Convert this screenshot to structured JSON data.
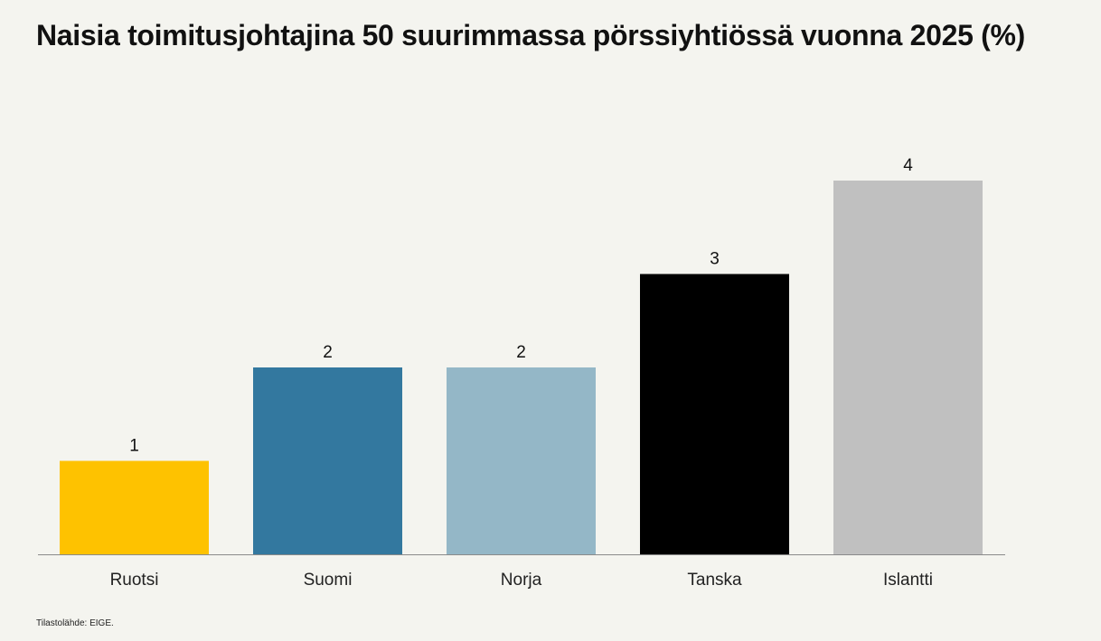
{
  "chart_data": {
    "type": "bar",
    "title": "Naisia toimitusjohtajina 50 suurimmassa pörssiyhtiössä vuonna 2025 (%)",
    "categories": [
      "Ruotsi",
      "Suomi",
      "Norja",
      "Tanska",
      "Islantti"
    ],
    "values": [
      1,
      2,
      2,
      3,
      4
    ],
    "data_labels": [
      "1",
      "2",
      "2",
      "3",
      "4"
    ],
    "colors": [
      "#fec200",
      "#33789f",
      "#94b7c7",
      "#000000",
      "#c0c0c0"
    ],
    "ylim": [
      0,
      4
    ],
    "grid": false,
    "legend": "none",
    "xlabel": "",
    "ylabel": ""
  },
  "source_text": "Tilastolähde: EIGE."
}
